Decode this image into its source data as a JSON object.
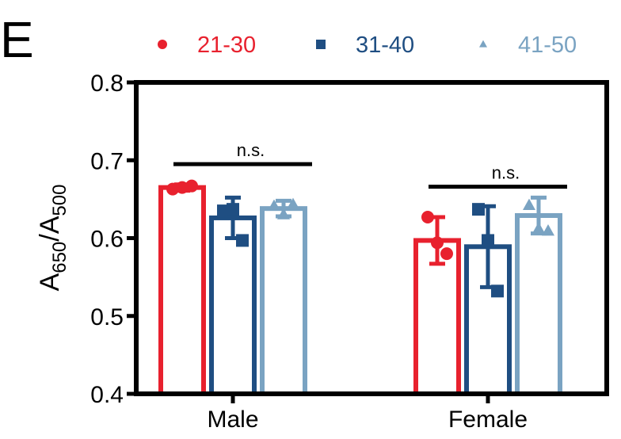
{
  "panel_label": "E",
  "colors": {
    "21-30": "#e8212e",
    "31-40": "#1f4e82",
    "41-50": "#7aa3c2"
  },
  "chart_data": {
    "type": "bar",
    "categories": [
      "Male",
      "Female"
    ],
    "ylabel": {
      "base": "A",
      "sub1": "650",
      "sep": "/A",
      "sub2": "500"
    },
    "ylim": [
      0.4,
      0.8
    ],
    "yticks": [
      "0.4",
      "0.5",
      "0.6",
      "0.7",
      "0.8"
    ],
    "legend_position": "top",
    "series": [
      {
        "name": "21-30",
        "marker": "circle",
        "values": [
          0.665,
          0.597
        ],
        "errors": [
          0.004,
          0.03
        ],
        "points": [
          [
            0.663,
            0.667,
            0.665
          ],
          [
            0.627,
            0.58,
            0.594
          ]
        ]
      },
      {
        "name": "31-40",
        "marker": "square",
        "values": [
          0.626,
          0.589
        ],
        "errors": [
          0.026,
          0.052
        ],
        "points": [
          [
            0.635,
            0.597,
            0.637
          ],
          [
            0.637,
            0.532,
            0.597
          ]
        ]
      },
      {
        "name": "41-50",
        "marker": "triangle",
        "values": [
          0.638,
          0.629
        ],
        "errors": [
          0.01,
          0.023
        ],
        "points": [
          [
            0.641,
            0.643,
            0.63
          ],
          [
            0.642,
            0.609,
            0.612
          ]
        ]
      }
    ],
    "annotations": [
      {
        "text": "n.s.",
        "category": "Male",
        "y": 0.695
      },
      {
        "text": "n.s.",
        "category": "Female",
        "y": 0.666
      }
    ]
  }
}
